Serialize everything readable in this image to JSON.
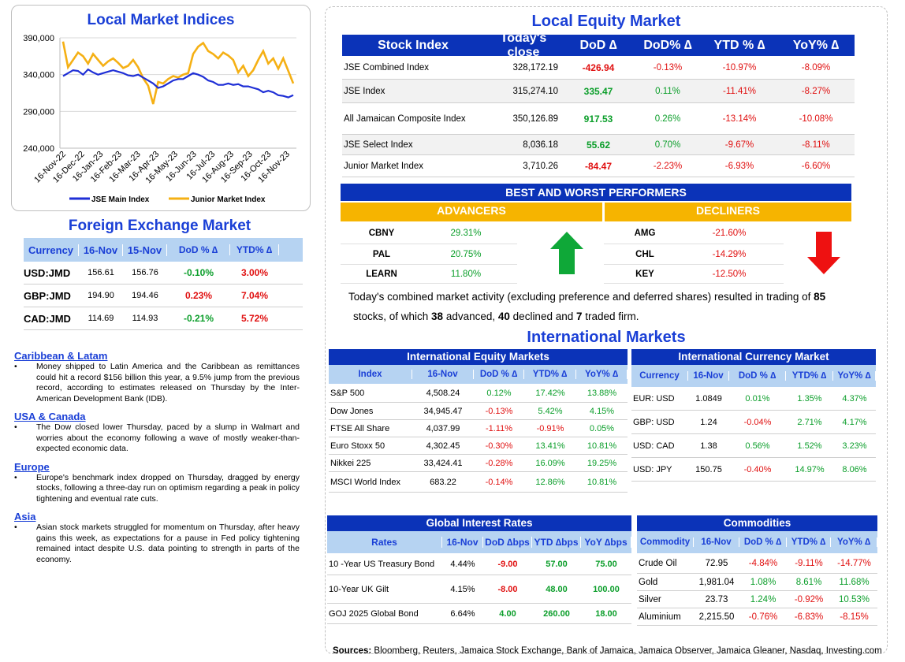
{
  "indices_chart": {
    "title": "Local Market Indices",
    "legend": [
      "JSE Main Index",
      "Junior Market Index"
    ]
  },
  "chart_data": {
    "type": "line",
    "title": "Local Market Indices",
    "x_ticks": [
      "16-Nov-22",
      "16-Dec-22",
      "16-Jan-23",
      "16-Feb-23",
      "16-Mar-23",
      "16-Apr-23",
      "16-May-23",
      "16-Jun-23",
      "16-Jul-23",
      "16-Aug-23",
      "16-Sep-23",
      "16-Oct-23",
      "16-Nov-23"
    ],
    "y_ticks": [
      "390,000",
      "340,000",
      "290,000",
      "240,000"
    ],
    "ylim": [
      240000,
      390000
    ],
    "grid": true,
    "legend_position": "bottom",
    "series": [
      {
        "name": "JSE Main Index",
        "color": "#1f2fd6",
        "values": [
          338000,
          342000,
          346000,
          345000,
          340000,
          347000,
          343000,
          340000,
          342000,
          344000,
          346000,
          344000,
          342000,
          339000,
          338000,
          340000,
          336000,
          332000,
          328000,
          322000,
          324000,
          328000,
          332000,
          334000,
          334000,
          338000,
          342000,
          340000,
          337000,
          332000,
          330000,
          326000,
          326000,
          328000,
          326000,
          327000,
          324000,
          324000,
          322000,
          320000,
          316000,
          318000,
          316000,
          312000,
          311000,
          309000,
          312000
        ]
      },
      {
        "name": "Junior Market Index",
        "color": "#f5b014",
        "values": [
          385000,
          350000,
          360000,
          370000,
          365000,
          355000,
          368000,
          360000,
          352000,
          358000,
          362000,
          356000,
          349000,
          352000,
          360000,
          350000,
          335000,
          325000,
          300000,
          330000,
          328000,
          334000,
          338000,
          336000,
          340000,
          342000,
          368000,
          378000,
          383000,
          372000,
          368000,
          362000,
          370000,
          366000,
          360000,
          343000,
          352000,
          338000,
          346000,
          360000,
          372000,
          355000,
          362000,
          348000,
          362000,
          345000,
          328000
        ]
      }
    ]
  },
  "fx": {
    "title": "Foreign Exchange Market",
    "headers": [
      "Currency",
      "16-Nov",
      "15-Nov",
      "DoD % ∆",
      "YTD% ∆"
    ],
    "rows": [
      {
        "currency": "USD:JMD",
        "d1": "156.61",
        "d2": "156.76",
        "dod": "-0.10%",
        "ytd": "3.00%",
        "dod_sign": "pos",
        "ytd_sign": "neg"
      },
      {
        "currency": "GBP:JMD",
        "d1": "194.90",
        "d2": "194.46",
        "dod": "0.23%",
        "ytd": "7.04%",
        "dod_sign": "neg",
        "ytd_sign": "neg"
      },
      {
        "currency": "CAD:JMD",
        "d1": "114.69",
        "d2": "114.93",
        "dod": "-0.21%",
        "ytd": "5.72%",
        "dod_sign": "pos",
        "ytd_sign": "neg"
      }
    ]
  },
  "news": [
    {
      "region": "Caribbean & Latam",
      "text": "Money shipped to Latin America and the Caribbean as remittances could hit a record $156 billion this year, a 9.5% jump from the previous record, according to estimates released on Thursday by the Inter-American Development Bank (IDB)."
    },
    {
      "region": "USA & Canada",
      "text": "The Dow closed lower Thursday, paced by a slump in Walmart and worries about the economy following a wave of mostly weaker-than-expected economic data."
    },
    {
      "region": "Europe",
      "text": "Europe's benchmark index dropped on Thursday, dragged by energy stocks, following a three-day run on optimism regarding a peak in policy tightening and eventual rate cuts."
    },
    {
      "region": "Asia",
      "text": "Asian stock markets struggled for momentum on Thursday, after heavy gains this week, as expectations for a pause in Fed policy tightening remained intact despite U.S. data pointing to strength in parts of the economy."
    }
  ],
  "equity": {
    "title": "Local Equity Market",
    "headers": [
      "Stock Index",
      "Today's close",
      "DoD  ∆",
      "DoD% ∆",
      "YTD % ∆",
      "YoY% ∆"
    ],
    "rows": [
      {
        "name": "JSE Combined Index",
        "close": "328,172.19",
        "dod": "-426.94",
        "dodp": "-0.13%",
        "ytd": "-10.97%",
        "yoy": "-8.09%",
        "sign": "neg"
      },
      {
        "name": "JSE Index",
        "close": "315,274.10",
        "dod": "335.47",
        "dodp": "0.11%",
        "ytd": "-11.41%",
        "yoy": "-8.27%",
        "sign": "pos"
      },
      {
        "name": "All Jamaican Composite Index",
        "close": "350,126.89",
        "dod": "917.53",
        "dodp": "0.26%",
        "ytd": "-13.14%",
        "yoy": "-10.08%",
        "sign": "pos"
      },
      {
        "name": "JSE Select Index",
        "close": "8,036.18",
        "dod": "55.62",
        "dodp": "0.70%",
        "ytd": "-9.67%",
        "yoy": "-8.11%",
        "sign": "pos"
      },
      {
        "name": "Junior Market Index",
        "close": "3,710.26",
        "dod": "-84.47",
        "dodp": "-2.23%",
        "ytd": "-6.93%",
        "yoy": "-6.60%",
        "sign": "neg"
      }
    ]
  },
  "performers": {
    "title": "BEST AND WORST PERFORMERS",
    "adv_label": "ADVANCERS",
    "dec_label": "DECLINERS",
    "advancers": [
      {
        "name": "CBNY",
        "value": "29.31%"
      },
      {
        "name": "PAL",
        "value": "20.75%"
      },
      {
        "name": "LEARN",
        "value": "11.80%"
      }
    ],
    "decliners": [
      {
        "name": "AMG",
        "value": "-21.60%"
      },
      {
        "name": "CHL",
        "value": "-14.29%"
      },
      {
        "name": "KEY",
        "value": "-12.50%"
      }
    ]
  },
  "summary": {
    "part1": "Today's combined market activity (excluding preference and deferred shares) resulted in trading of ",
    "traded": "85",
    "part2": "stocks, of which ",
    "advanced": "38",
    "part3": " advanced, ",
    "declined": "40",
    "part4": " declined and ",
    "firm": "7",
    "part5": " traded firm."
  },
  "intl": {
    "title": "International Markets",
    "equity_title": "International Equity Markets",
    "equity_headers": [
      "Index",
      "16-Nov",
      "DoD % ∆",
      "YTD% ∆",
      "YoY% ∆"
    ],
    "equity_rows": [
      {
        "name": "S&P 500",
        "v": "4,508.24",
        "dod": "0.12%",
        "ytd": "17.42%",
        "yoy": "13.88%",
        "s1": "pos",
        "s2": "pos",
        "s3": "pos"
      },
      {
        "name": "Dow Jones",
        "v": "34,945.47",
        "dod": "-0.13%",
        "ytd": "5.42%",
        "yoy": "4.15%",
        "s1": "neg",
        "s2": "pos",
        "s3": "pos"
      },
      {
        "name": "FTSE All Share",
        "v": "4,037.99",
        "dod": "-1.11%",
        "ytd": "-0.91%",
        "yoy": "0.05%",
        "s1": "neg",
        "s2": "neg",
        "s3": "pos"
      },
      {
        "name": "Euro Stoxx 50",
        "v": "4,302.45",
        "dod": "-0.30%",
        "ytd": "13.41%",
        "yoy": "10.81%",
        "s1": "neg",
        "s2": "pos",
        "s3": "pos"
      },
      {
        "name": "Nikkei 225",
        "v": "33,424.41",
        "dod": "-0.28%",
        "ytd": "16.09%",
        "yoy": "19.25%",
        "s1": "neg",
        "s2": "pos",
        "s3": "pos"
      },
      {
        "name": "MSCI World Index",
        "v": "683.22",
        "dod": "-0.14%",
        "ytd": "12.86%",
        "yoy": "10.81%",
        "s1": "neg",
        "s2": "pos",
        "s3": "pos"
      }
    ],
    "currency_title": "International Currency Market",
    "currency_headers": [
      "Currency",
      "16-Nov",
      "DoD % ∆",
      "YTD% ∆",
      "YoY% ∆"
    ],
    "currency_rows": [
      {
        "name": "EUR: USD",
        "v": "1.0849",
        "dod": "0.01%",
        "ytd": "1.35%",
        "yoy": "4.37%",
        "s1": "pos",
        "s2": "pos",
        "s3": "pos"
      },
      {
        "name": "GBP: USD",
        "v": "1.24",
        "dod": "-0.04%",
        "ytd": "2.71%",
        "yoy": "4.17%",
        "s1": "neg",
        "s2": "pos",
        "s3": "pos"
      },
      {
        "name": "USD: CAD",
        "v": "1.38",
        "dod": "0.56%",
        "ytd": "1.52%",
        "yoy": "3.23%",
        "s1": "pos",
        "s2": "pos",
        "s3": "pos"
      },
      {
        "name": "USD: JPY",
        "v": "150.75",
        "dod": "-0.40%",
        "ytd": "14.97%",
        "yoy": "8.06%",
        "s1": "neg",
        "s2": "pos",
        "s3": "pos"
      }
    ],
    "rates_title": "Global Interest Rates",
    "rates_headers": [
      "Rates",
      "16-Nov",
      "DoD ∆bps",
      "YTD ∆bps",
      "YoY ∆bps"
    ],
    "rates_rows": [
      {
        "name": "10 -Year US Treasury Bond",
        "v": "4.44%",
        "dod": "-9.00",
        "ytd": "57.00",
        "yoy": "75.00",
        "s1": "neg",
        "s2": "pos",
        "s3": "pos"
      },
      {
        "name": "10-Year UK Gilt",
        "v": "4.15%",
        "dod": "-8.00",
        "ytd": "48.00",
        "yoy": "100.00",
        "s1": "neg",
        "s2": "pos",
        "s3": "pos"
      },
      {
        "name": "GOJ 2025 Global Bond",
        "v": "6.64%",
        "dod": "4.00",
        "ytd": "260.00",
        "yoy": "18.00",
        "s1": "pos",
        "s2": "pos",
        "s3": "pos"
      }
    ],
    "comm_title": "Commodities",
    "comm_headers": [
      "Commodity",
      "16-Nov",
      "DoD % ∆",
      "YTD% ∆",
      "YoY% ∆"
    ],
    "comm_rows": [
      {
        "name": "Crude Oil",
        "v": "72.95",
        "dod": "-4.84%",
        "ytd": "-9.11%",
        "yoy": "-14.77%",
        "s1": "neg",
        "s2": "neg",
        "s3": "neg"
      },
      {
        "name": "Gold",
        "v": "1,981.04",
        "dod": "1.08%",
        "ytd": "8.61%",
        "yoy": "11.68%",
        "s1": "pos",
        "s2": "pos",
        "s3": "pos"
      },
      {
        "name": "Silver",
        "v": "23.73",
        "dod": "1.24%",
        "ytd": "-0.92%",
        "yoy": "10.53%",
        "s1": "pos",
        "s2": "neg",
        "s3": "pos"
      },
      {
        "name": "Aluminium",
        "v": "2,215.50",
        "dod": "-0.76%",
        "ytd": "-6.83%",
        "yoy": "-8.15%",
        "s1": "neg",
        "s2": "neg",
        "s3": "neg"
      }
    ]
  },
  "sources": {
    "label": "Sources:",
    "text": " Bloomberg, Reuters, Jamaica Stock Exchange, Bank of Jamaica, Jamaica Observer, Jamaica Gleaner, Nasdaq, Investing.com"
  },
  "colors": {
    "header_blue": "#0b33b8",
    "light_blue": "#b6d3f2",
    "gold": "#f6b400",
    "green": "#0b9e2a",
    "red": "#e01010"
  }
}
